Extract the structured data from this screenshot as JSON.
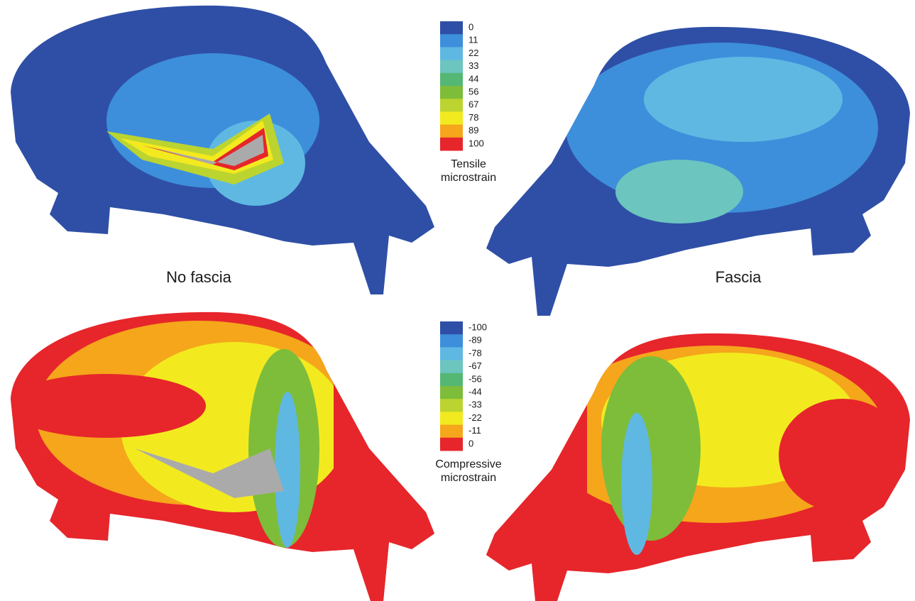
{
  "panels": [
    {
      "label": "No fascia"
    },
    {
      "label": "Fascia"
    }
  ],
  "legends": [
    {
      "title": [
        "Tensile",
        "microstrain"
      ],
      "entries": [
        {
          "label": "0",
          "color": "#2f4fa6"
        },
        {
          "label": "11",
          "color": "#3d8fdb"
        },
        {
          "label": "22",
          "color": "#5fb8e2"
        },
        {
          "label": "33",
          "color": "#6cc5bf"
        },
        {
          "label": "44",
          "color": "#55b774"
        },
        {
          "label": "56",
          "color": "#7dbd3a"
        },
        {
          "label": "67",
          "color": "#bcd42f"
        },
        {
          "label": "78",
          "color": "#f2ea1f"
        },
        {
          "label": "89",
          "color": "#f5a61b"
        },
        {
          "label": "100",
          "color": "#e6262b"
        }
      ]
    },
    {
      "title": [
        "Compressive",
        "microstrain"
      ],
      "entries": [
        {
          "label": "-100",
          "color": "#2f4fa6"
        },
        {
          "label": "-89",
          "color": "#3d8fdb"
        },
        {
          "label": "-78",
          "color": "#5fb8e2"
        },
        {
          "label": "-67",
          "color": "#6cc5bf"
        },
        {
          "label": "-56",
          "color": "#55b774"
        },
        {
          "label": "-44",
          "color": "#7dbd3a"
        },
        {
          "label": "-33",
          "color": "#bcd42f"
        },
        {
          "label": "-22",
          "color": "#f2ea1f"
        },
        {
          "label": "-11",
          "color": "#f5a61b"
        },
        {
          "label": "0",
          "color": "#e6262b"
        }
      ]
    }
  ]
}
